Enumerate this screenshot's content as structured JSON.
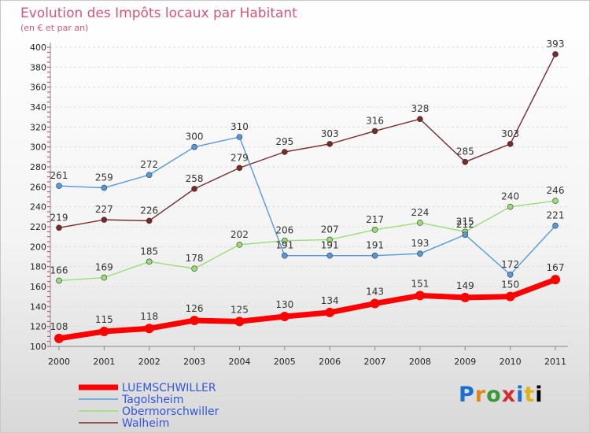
{
  "chart_data": {
    "type": "line",
    "title": "Evolution des Impôts locaux par Habitant",
    "subtitle": "(en € et par an)",
    "categories": [
      "2000",
      "2001",
      "2002",
      "2003",
      "2004",
      "2005",
      "2006",
      "2007",
      "2008",
      "2009",
      "2010",
      "2011"
    ],
    "ylim": [
      100,
      400
    ],
    "yticks": [
      100,
      120,
      140,
      160,
      180,
      200,
      220,
      240,
      260,
      280,
      300,
      320,
      340,
      360,
      380,
      400
    ],
    "grid": "horizontal",
    "legend_position": "bottom-left",
    "series": [
      {
        "name": "Walheim",
        "color": "#7a2828",
        "width": 1.4,
        "values": [
          219,
          227,
          226,
          258,
          279,
          295,
          303,
          316,
          328,
          285,
          303,
          393
        ]
      },
      {
        "name": "Obermorschwiller",
        "color": "#99dd77",
        "width": 1.4,
        "values": [
          166,
          169,
          185,
          178,
          202,
          206,
          207,
          217,
          224,
          215,
          240,
          246
        ]
      },
      {
        "name": "Tagolsheim",
        "color": "#5599dd",
        "width": 1.4,
        "values": [
          261,
          259,
          272,
          300,
          310,
          191,
          191,
          191,
          193,
          212,
          172,
          221
        ]
      },
      {
        "name": "LUEMSCHWILLER",
        "color": "#ff0000",
        "width": 7,
        "values": [
          108,
          115,
          118,
          126,
          125,
          130,
          134,
          143,
          151,
          149,
          150,
          167
        ]
      }
    ],
    "legend_order": [
      "LUEMSCHWILLER",
      "Tagolsheim",
      "Obermorschwiller",
      "Walheim"
    ]
  },
  "logo": {
    "letters": [
      "P",
      "r",
      "o",
      "x",
      "i",
      "t",
      "i"
    ]
  }
}
